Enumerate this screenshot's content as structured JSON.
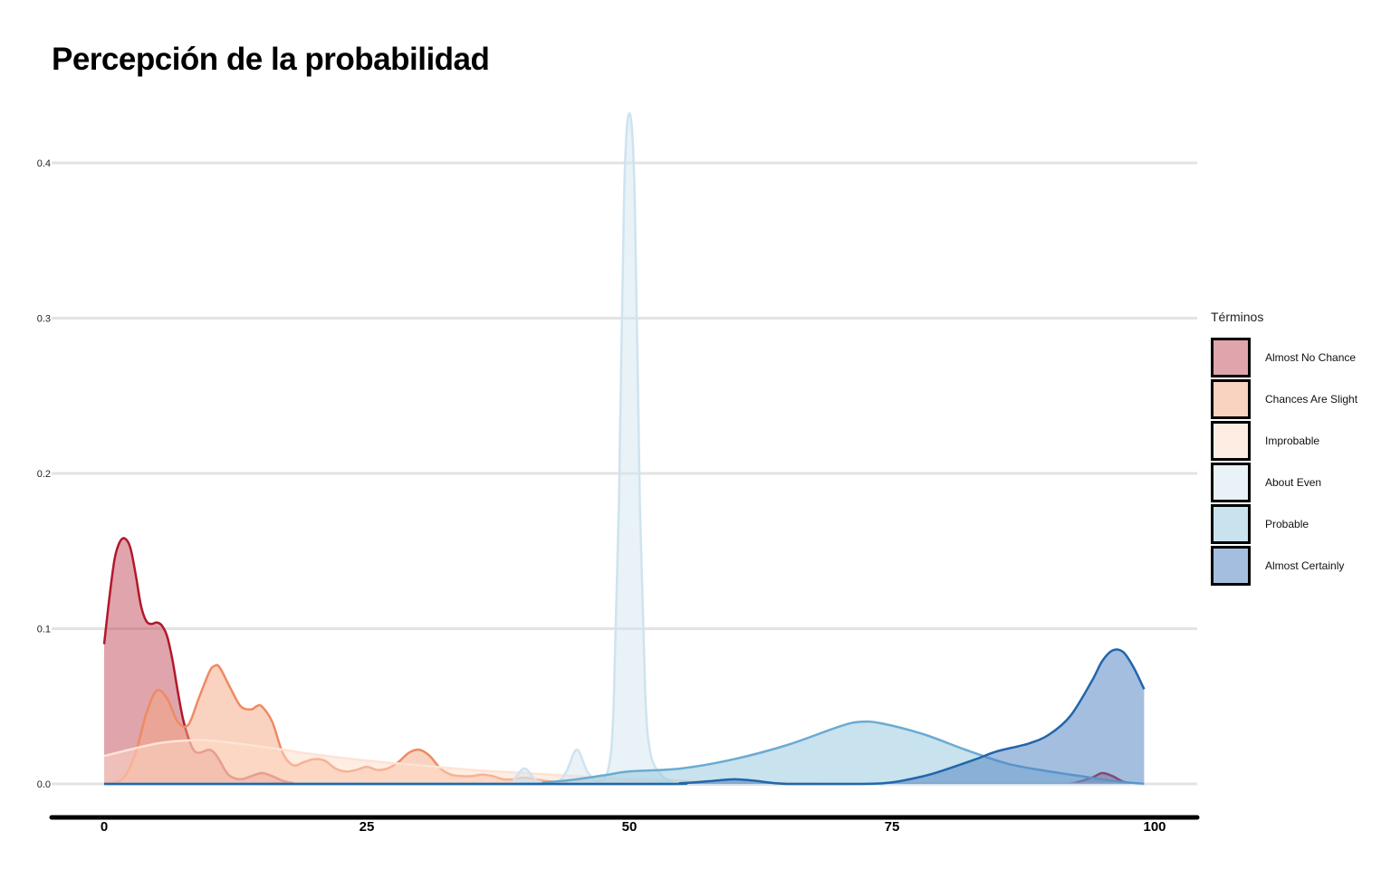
{
  "chart_data": {
    "type": "area",
    "subtype": "density",
    "title": "Percepción de la probabilidad",
    "xlabel": "",
    "ylabel": "",
    "xlim": [
      0,
      100
    ],
    "ylim": [
      0,
      0.43
    ],
    "x_ticks": [
      0,
      25,
      50,
      75,
      100
    ],
    "y_ticks": [
      0.0,
      0.1,
      0.2,
      0.3,
      0.4
    ],
    "x_tick_labels": [
      "0",
      "25",
      "50",
      "75",
      "100"
    ],
    "y_tick_labels": [
      "0.0",
      "0.1",
      "0.2",
      "0.3",
      "0.4"
    ],
    "grid": "horizontal",
    "legend": {
      "title": "Términos",
      "position": "right"
    },
    "series": [
      {
        "name": "Almost No Chance",
        "fill": "#c1495a",
        "stroke": "#b2182b",
        "points": [
          [
            0,
            0.09
          ],
          [
            0.5,
            0.12
          ],
          [
            1,
            0.145
          ],
          [
            1.5,
            0.156
          ],
          [
            2,
            0.158
          ],
          [
            2.5,
            0.152
          ],
          [
            3,
            0.135
          ],
          [
            3.5,
            0.115
          ],
          [
            4,
            0.105
          ],
          [
            4.5,
            0.103
          ],
          [
            5,
            0.104
          ],
          [
            5.5,
            0.102
          ],
          [
            6,
            0.095
          ],
          [
            6.5,
            0.08
          ],
          [
            7,
            0.06
          ],
          [
            7.5,
            0.042
          ],
          [
            8,
            0.03
          ],
          [
            8.5,
            0.022
          ],
          [
            9,
            0.02
          ],
          [
            9.5,
            0.021
          ],
          [
            10,
            0.022
          ],
          [
            10.5,
            0.02
          ],
          [
            11,
            0.015
          ],
          [
            11.5,
            0.009
          ],
          [
            12,
            0.005
          ],
          [
            13,
            0.003
          ],
          [
            14,
            0.005
          ],
          [
            15,
            0.007
          ],
          [
            16,
            0.005
          ],
          [
            17,
            0.002
          ],
          [
            18,
            0.0005
          ],
          [
            20,
            0
          ],
          [
            90,
            0
          ],
          [
            92,
            0.0002
          ],
          [
            94,
            0.004
          ],
          [
            95,
            0.007
          ],
          [
            96,
            0.005
          ],
          [
            97,
            0.0015
          ],
          [
            98,
            0.0002
          ],
          [
            99,
            0
          ]
        ]
      },
      {
        "name": "Chances Are Slight",
        "fill": "#f4a582",
        "stroke": "#ee8a63",
        "points": [
          [
            0,
            0.0005
          ],
          [
            1,
            0.001
          ],
          [
            2,
            0.005
          ],
          [
            3,
            0.02
          ],
          [
            4,
            0.045
          ],
          [
            5,
            0.06
          ],
          [
            6,
            0.055
          ],
          [
            7,
            0.04
          ],
          [
            8,
            0.038
          ],
          [
            9,
            0.055
          ],
          [
            10,
            0.072
          ],
          [
            10.5,
            0.076
          ],
          [
            11,
            0.075
          ],
          [
            12,
            0.062
          ],
          [
            13,
            0.05
          ],
          [
            14,
            0.048
          ],
          [
            14.5,
            0.05
          ],
          [
            15,
            0.05
          ],
          [
            16,
            0.04
          ],
          [
            17,
            0.02
          ],
          [
            18,
            0.012
          ],
          [
            19,
            0.014
          ],
          [
            20,
            0.016
          ],
          [
            21,
            0.015
          ],
          [
            22,
            0.01
          ],
          [
            23,
            0.008
          ],
          [
            24,
            0.009
          ],
          [
            25,
            0.011
          ],
          [
            26,
            0.009
          ],
          [
            27,
            0.01
          ],
          [
            28,
            0.014
          ],
          [
            29,
            0.02
          ],
          [
            30,
            0.022
          ],
          [
            31,
            0.018
          ],
          [
            32,
            0.01
          ],
          [
            33,
            0.006
          ],
          [
            34,
            0.005
          ],
          [
            35,
            0.005
          ],
          [
            36,
            0.006
          ],
          [
            37,
            0.005
          ],
          [
            38,
            0.003
          ],
          [
            39,
            0.003
          ],
          [
            40,
            0.004
          ],
          [
            41,
            0.003
          ],
          [
            42,
            0.002
          ],
          [
            44,
            0.0005
          ],
          [
            46,
            0
          ],
          [
            99,
            0
          ]
        ]
      },
      {
        "name": "Improbable",
        "fill": "#fddbc7",
        "stroke": "#fde3d4",
        "points": [
          [
            0,
            0.018
          ],
          [
            5,
            0.026
          ],
          [
            8,
            0.028
          ],
          [
            10,
            0.028
          ],
          [
            15,
            0.024
          ],
          [
            20,
            0.019
          ],
          [
            25,
            0.015
          ],
          [
            30,
            0.012
          ],
          [
            35,
            0.009
          ],
          [
            40,
            0.007
          ],
          [
            45,
            0.005
          ],
          [
            50,
            0.003
          ],
          [
            55,
            0.002
          ],
          [
            60,
            0.001
          ],
          [
            65,
            0.0005
          ],
          [
            70,
            0.0002
          ],
          [
            75,
            0
          ],
          [
            99,
            0
          ]
        ]
      },
      {
        "name": "About Even",
        "fill": "#d1e5f0",
        "stroke": "#cfe3ef",
        "points": [
          [
            0,
            0
          ],
          [
            38,
            0
          ],
          [
            39,
            0.003
          ],
          [
            40,
            0.01
          ],
          [
            41,
            0.003
          ],
          [
            42,
            0
          ],
          [
            43,
            0
          ],
          [
            44,
            0.008
          ],
          [
            45,
            0.022
          ],
          [
            46,
            0.008
          ],
          [
            47,
            0.002
          ],
          [
            48,
            0.01
          ],
          [
            48.5,
            0.05
          ],
          [
            49,
            0.18
          ],
          [
            49.5,
            0.38
          ],
          [
            50,
            0.432
          ],
          [
            50.5,
            0.38
          ],
          [
            51,
            0.18
          ],
          [
            51.5,
            0.06
          ],
          [
            52,
            0.02
          ],
          [
            53,
            0.006
          ],
          [
            54,
            0.002
          ],
          [
            56,
            0
          ],
          [
            99,
            0
          ]
        ]
      },
      {
        "name": "Probable",
        "fill": "#92c5de",
        "stroke": "#6aabd3",
        "points": [
          [
            0,
            0
          ],
          [
            38,
            0
          ],
          [
            42,
            0.001
          ],
          [
            45,
            0.003
          ],
          [
            48,
            0.006
          ],
          [
            50,
            0.008
          ],
          [
            55,
            0.01
          ],
          [
            60,
            0.016
          ],
          [
            65,
            0.025
          ],
          [
            70,
            0.037
          ],
          [
            72,
            0.04
          ],
          [
            74,
            0.039
          ],
          [
            78,
            0.032
          ],
          [
            82,
            0.022
          ],
          [
            86,
            0.013
          ],
          [
            90,
            0.008
          ],
          [
            93,
            0.005
          ],
          [
            96,
            0.002
          ],
          [
            99,
            0
          ]
        ]
      },
      {
        "name": "Almost Certainly",
        "fill": "#4a7dbf",
        "stroke": "#2166ac",
        "points": [
          [
            0,
            0
          ],
          [
            50,
            0
          ],
          [
            55,
            0.0005
          ],
          [
            58,
            0.002
          ],
          [
            60,
            0.003
          ],
          [
            62,
            0.002
          ],
          [
            65,
            0
          ],
          [
            72,
            0
          ],
          [
            75,
            0.001
          ],
          [
            78,
            0.005
          ],
          [
            80,
            0.009
          ],
          [
            83,
            0.016
          ],
          [
            85,
            0.021
          ],
          [
            88,
            0.026
          ],
          [
            90,
            0.032
          ],
          [
            92,
            0.044
          ],
          [
            94,
            0.066
          ],
          [
            95,
            0.079
          ],
          [
            96,
            0.086
          ],
          [
            97,
            0.085
          ],
          [
            98,
            0.075
          ],
          [
            99,
            0.061
          ]
        ]
      }
    ]
  }
}
